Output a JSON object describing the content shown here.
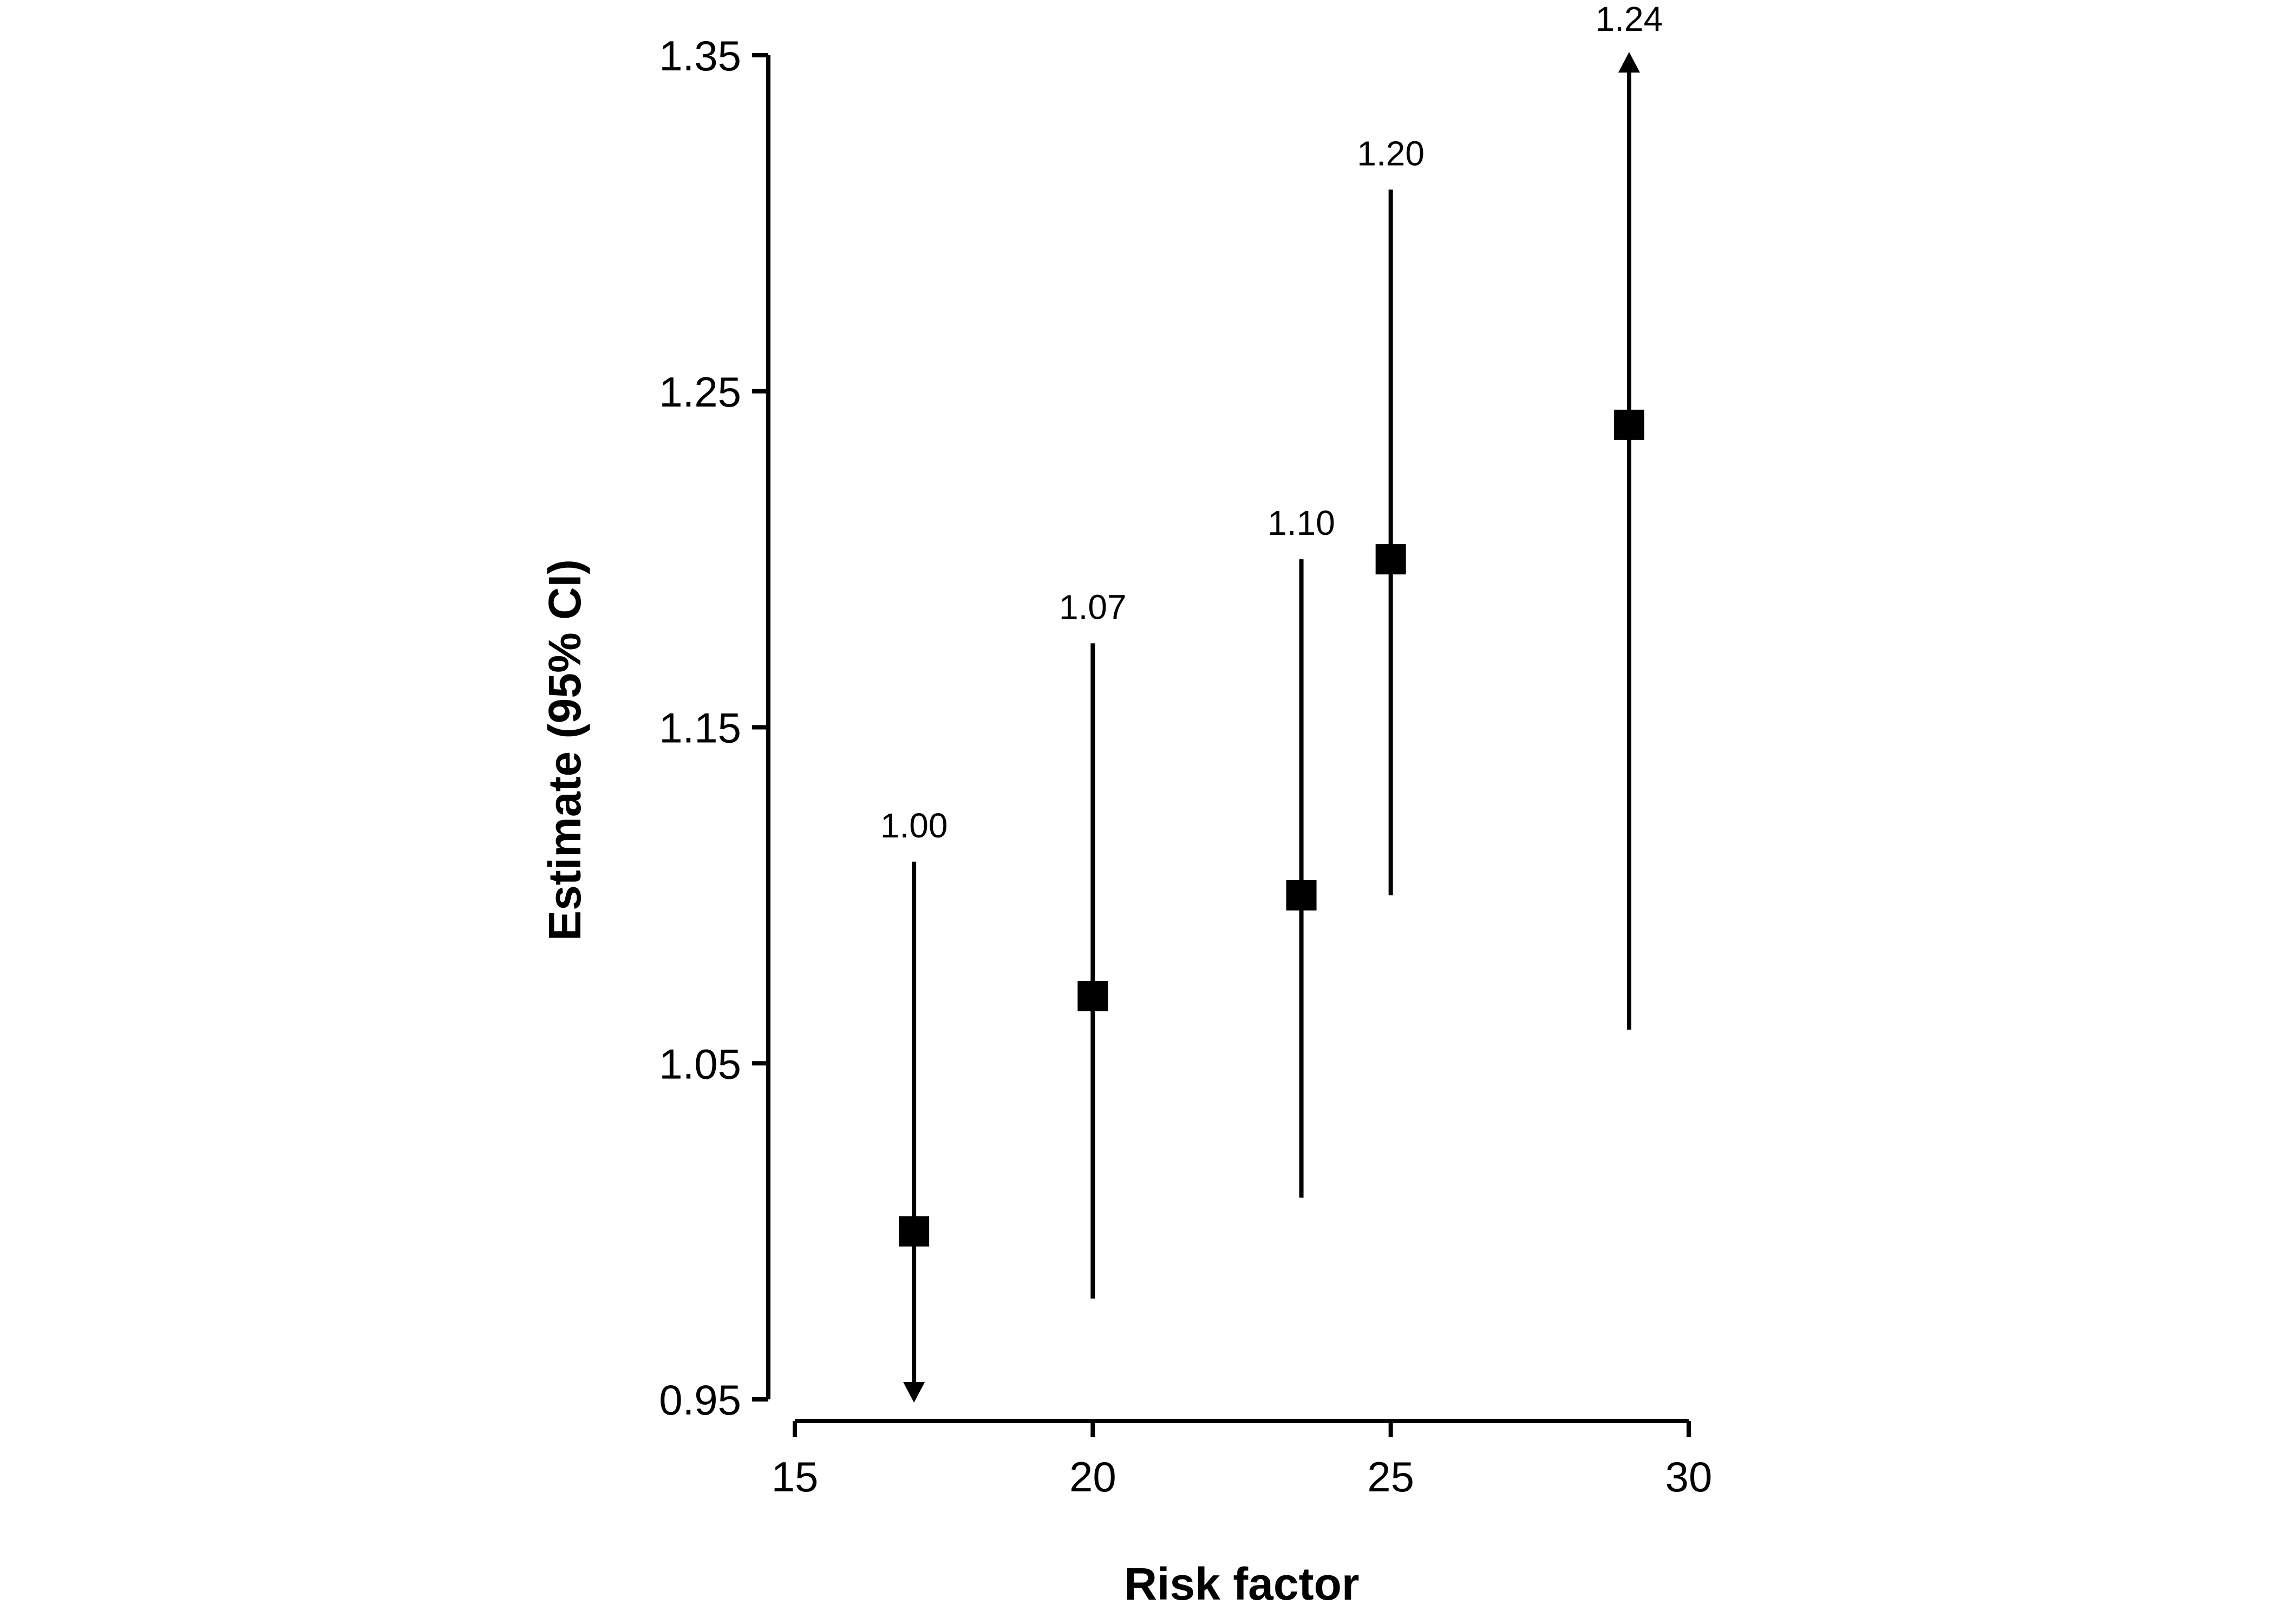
{
  "chart_data": {
    "type": "scatter",
    "title": "",
    "xlabel": "Risk factor",
    "ylabel": "Estimate (95% CI)",
    "xlim": [
      15,
      30
    ],
    "ylim": [
      0.95,
      1.35
    ],
    "x_ticks": [
      15,
      20,
      25,
      30
    ],
    "y_ticks": [
      0.95,
      1.05,
      1.15,
      1.25,
      1.35
    ],
    "y_tick_labels": [
      "0.95",
      "1.05",
      "1.15",
      "1.25",
      "1.35"
    ],
    "grid": false,
    "marker": "square",
    "color": "#000000",
    "points": [
      {
        "x": 17.0,
        "estimate": 1.0,
        "ci_low": 0.95,
        "ci_high": 1.11,
        "label": "1.00",
        "arrow": "down"
      },
      {
        "x": 20.0,
        "estimate": 1.07,
        "ci_low": 0.98,
        "ci_high": 1.175,
        "label": "1.07",
        "arrow": ""
      },
      {
        "x": 23.5,
        "estimate": 1.1,
        "ci_low": 1.01,
        "ci_high": 1.2,
        "label": "1.10",
        "arrow": ""
      },
      {
        "x": 25.0,
        "estimate": 1.2,
        "ci_low": 1.1,
        "ci_high": 1.31,
        "label": "1.20",
        "arrow": ""
      },
      {
        "x": 29.0,
        "estimate": 1.24,
        "ci_low": 1.06,
        "ci_high": 1.35,
        "label": "1.24",
        "arrow": "up"
      }
    ]
  }
}
